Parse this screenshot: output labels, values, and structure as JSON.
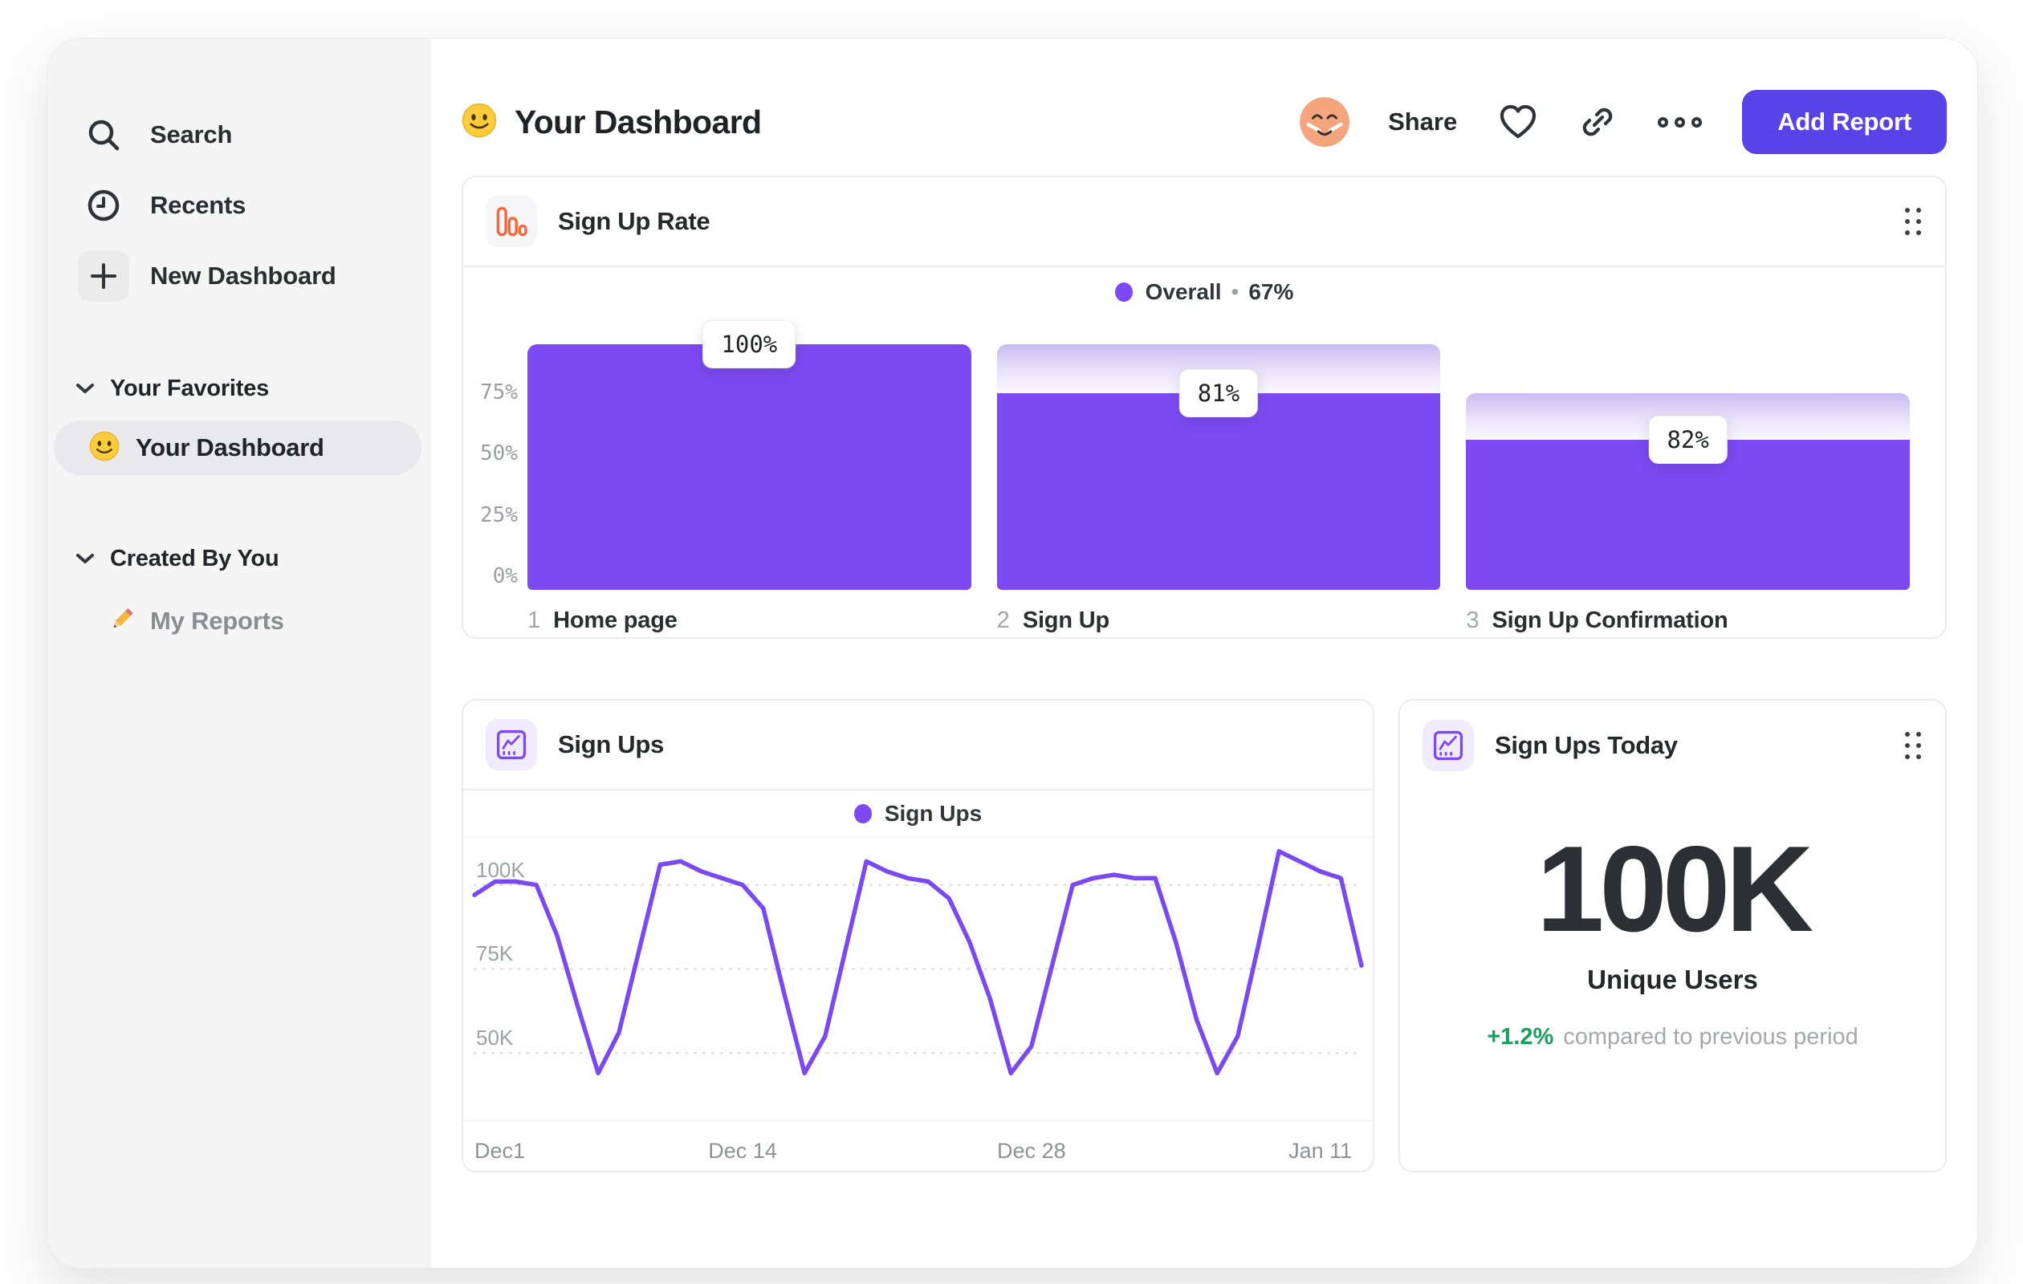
{
  "sidebar": {
    "items": [
      {
        "label": "Search",
        "icon": "search"
      },
      {
        "label": "Recents",
        "icon": "clock"
      },
      {
        "label": "New Dashboard",
        "icon": "plus"
      }
    ],
    "sections": [
      {
        "label": "Your Favorites",
        "items": [
          {
            "label": "Your Dashboard",
            "icon": "smiley",
            "selected": true
          }
        ]
      },
      {
        "label": "Created By You",
        "items": [
          {
            "label": "My Reports",
            "icon": "pencil",
            "selected": false
          }
        ]
      }
    ]
  },
  "header": {
    "title": "Your Dashboard",
    "share_label": "Share",
    "add_report_label": "Add Report",
    "accent_color": "#5743e8"
  },
  "chart_data": [
    {
      "id": "signup-rate-funnel",
      "type": "bar",
      "title": "Sign Up Rate",
      "legend": {
        "label": "Overall",
        "sep": "•",
        "value": "67%"
      },
      "categories": [
        "Home page",
        "Sign Up",
        "Sign Up Confirmation"
      ],
      "step_numbers": [
        "1",
        "2",
        "3"
      ],
      "values": [
        100,
        81,
        67
      ],
      "step_conversion_pct": [
        100,
        81,
        82
      ],
      "badges": [
        "100%",
        "81%",
        "82%"
      ],
      "render_heights_pct": [
        100,
        80,
        61
      ],
      "ylim": [
        0,
        100
      ],
      "y_ticks": [
        {
          "label": "75%",
          "value": 75
        },
        {
          "label": "50%",
          "value": 50
        },
        {
          "label": "25%",
          "value": 25
        },
        {
          "label": "0%",
          "value": 0
        }
      ],
      "bar_color": "#7c49f2",
      "grid": false,
      "legend_position": "top-center"
    },
    {
      "id": "signups-line",
      "type": "line",
      "title": "Sign Ups",
      "series": [
        {
          "name": "Sign Ups",
          "unit": "thousands",
          "values": [
            97,
            101,
            101,
            100,
            85,
            64,
            44,
            56,
            81,
            106,
            107,
            104,
            102,
            100,
            93,
            68,
            44,
            55,
            81,
            107,
            104,
            102,
            101,
            96,
            83,
            66,
            44,
            52,
            76,
            100,
            102,
            103,
            102,
            102,
            83,
            60,
            44,
            55,
            82,
            110,
            107,
            104,
            102,
            76
          ]
        }
      ],
      "x_ticks": [
        {
          "label": "Dec1",
          "day": 0
        },
        {
          "label": "Dec 14",
          "day": 13
        },
        {
          "label": "Dec 28",
          "day": 27
        },
        {
          "label": "Jan 11",
          "day": 41
        }
      ],
      "y_ticks": [
        {
          "label": "100K",
          "value": 100
        },
        {
          "label": "75K",
          "value": 75
        },
        {
          "label": "50K",
          "value": 50
        }
      ],
      "ylim": [
        30,
        114
      ],
      "line_color": "#7a4af0",
      "grid": "dashed-horizontal",
      "legend_position": "top-center"
    },
    {
      "id": "signups-today",
      "type": "metric",
      "title": "Sign Ups Today",
      "value": "100K",
      "label": "Unique Users",
      "delta": "+1.2%",
      "delta_color": "#16a05a",
      "note": "compared to previous period"
    }
  ]
}
